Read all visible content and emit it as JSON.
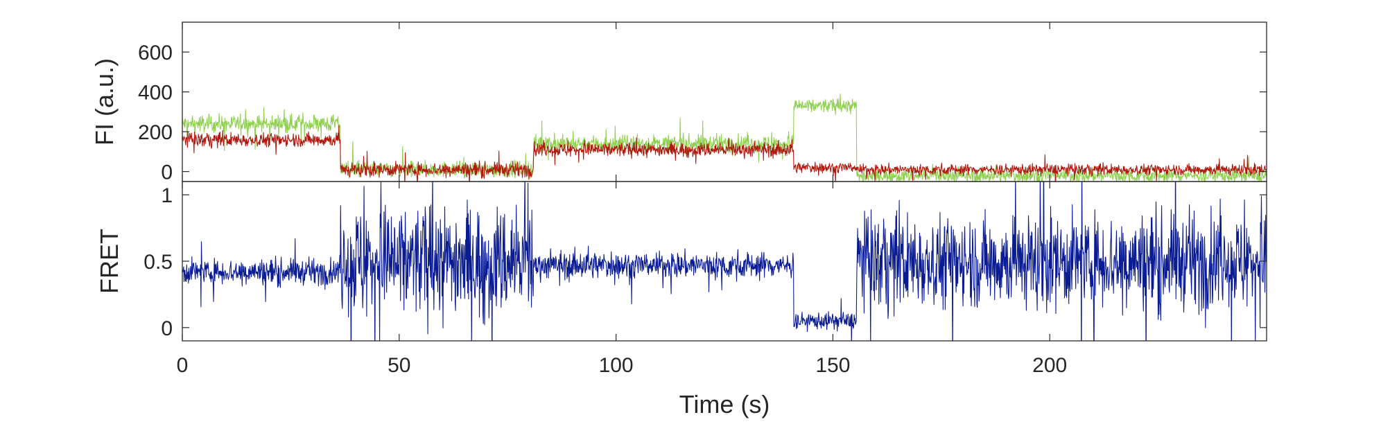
{
  "chart_data": [
    {
      "type": "line",
      "panel": "top",
      "ylabel": "FI (a.u.)",
      "xlabel": "",
      "xlim": [
        0,
        250
      ],
      "ylim": [
        -50,
        750
      ],
      "yticks": [
        0,
        200,
        400,
        600
      ],
      "ytick_labels": [
        "0",
        "200",
        "400",
        "600"
      ],
      "grid": false,
      "legend": "none",
      "series": [
        {
          "color": "#8fd14f",
          "segments": [
            {
              "x": [
                0,
                36.5
              ],
              "mean": 240,
              "noise": 55
            },
            {
              "x": [
                36.5,
                81
              ],
              "mean": 10,
              "noise": 50
            },
            {
              "x": [
                81,
                141
              ],
              "mean": 140,
              "noise": 55
            },
            {
              "x": [
                141,
                155.5
              ],
              "mean": 330,
              "noise": 45
            },
            {
              "x": [
                155.5,
                250
              ],
              "mean": -20,
              "noise": 45
            }
          ]
        },
        {
          "color": "#b01a0e",
          "segments": [
            {
              "x": [
                0,
                36.5
              ],
              "mean": 160,
              "noise": 45
            },
            {
              "x": [
                36.5,
                81
              ],
              "mean": 10,
              "noise": 45
            },
            {
              "x": [
                81,
                141
              ],
              "mean": 110,
              "noise": 45
            },
            {
              "x": [
                141,
                155.5
              ],
              "mean": 20,
              "noise": 35
            },
            {
              "x": [
                155.5,
                250
              ],
              "mean": 10,
              "noise": 35
            }
          ]
        }
      ]
    },
    {
      "type": "line",
      "panel": "bottom",
      "ylabel": "FRET",
      "xlabel": "Time (s)",
      "xlim": [
        0,
        250
      ],
      "ylim": [
        -0.1,
        1.1
      ],
      "yticks": [
        0,
        0.5,
        1
      ],
      "ytick_labels": [
        "0",
        "0.5",
        "1"
      ],
      "xticks": [
        0,
        50,
        100,
        150,
        200
      ],
      "xtick_labels": [
        "0",
        "50",
        "100",
        "150",
        "200"
      ],
      "grid": false,
      "legend": "none",
      "series": [
        {
          "color": "#0a1c93",
          "segments": [
            {
              "x": [
                0,
                36.5
              ],
              "mean": 0.42,
              "noise": 0.12
            },
            {
              "x": [
                36.5,
                81
              ],
              "mean": 0.5,
              "noise": 0.55
            },
            {
              "x": [
                81,
                141
              ],
              "mean": 0.47,
              "noise": 0.13
            },
            {
              "x": [
                141,
                155.5
              ],
              "mean": 0.05,
              "noise": 0.08
            },
            {
              "x": [
                155.5,
                250
              ],
              "mean": 0.5,
              "noise": 0.45
            }
          ]
        }
      ]
    }
  ]
}
